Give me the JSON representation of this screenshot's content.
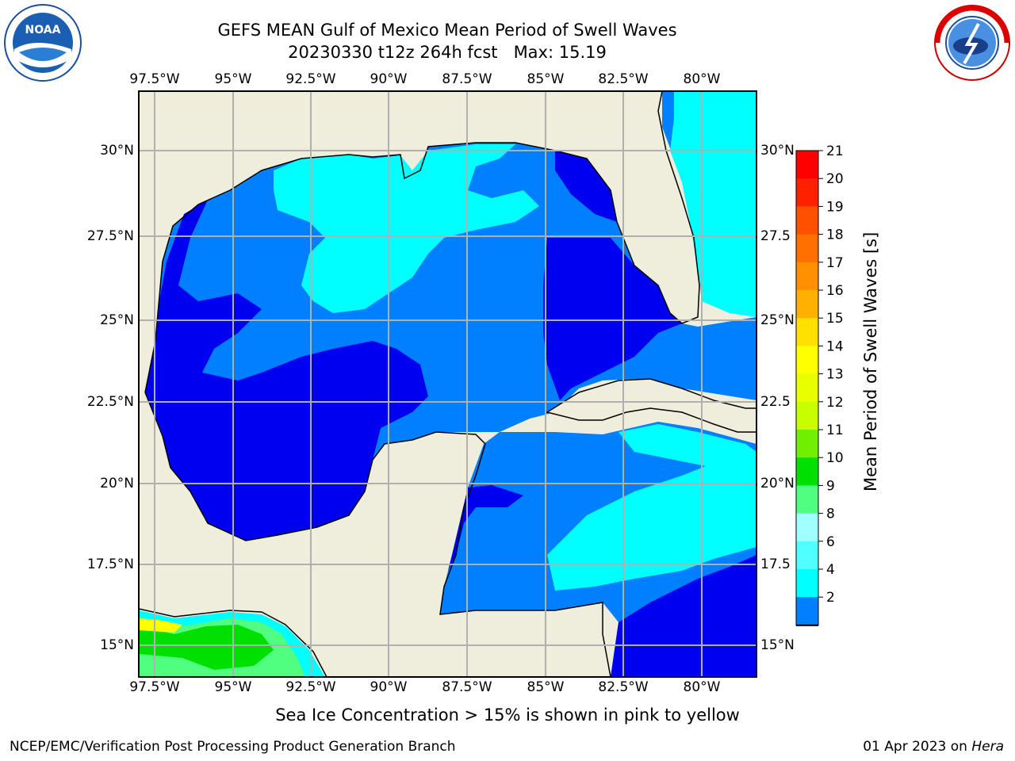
{
  "header": {
    "title_line1": "GEFS MEAN Gulf of Mexico Mean Period of Swell Waves",
    "title_line2": "20230330 t12z 264h fcst   Max: 15.19"
  },
  "logos": {
    "left": {
      "text": "NOAA",
      "ring_text": "NATIONAL OCEANIC AND ATMOSPHERIC ADMINISTRATION · U.S. DEPARTMENT OF COMMERCE"
    },
    "right": {
      "ring_text": "NATIONAL WEATHER SERVICE"
    }
  },
  "map": {
    "lon_ticks": [
      "97.5°W",
      "95°W",
      "92.5°W",
      "90°W",
      "87.5°W",
      "85°W",
      "82.5°W",
      "80°W"
    ],
    "lat_ticks_left": [
      "30°N",
      "27.5°N",
      "25°N",
      "22.5°N",
      "20°N",
      "17.5°N",
      "15°N"
    ],
    "lat_ticks_right": [
      "30°N",
      "27.5",
      "25°N",
      "22.5",
      "20°N",
      "17.5",
      "15°N"
    ],
    "extent": {
      "lon": [
        -98,
        -78.3
      ],
      "lat": [
        14,
        31.8
      ]
    },
    "colors": {
      "land": "#efeddc",
      "ocean_2_4": "#0080ff",
      "ocean_lt2": "#0000f0",
      "ocean_4_6": "#00ffff",
      "grid": "#b0b0b0"
    }
  },
  "colorbar": {
    "label": "Mean Period of Swell Waves [s]",
    "ticks": [
      "21",
      "20",
      "19",
      "18",
      "17",
      "16",
      "15",
      "14",
      "13",
      "12",
      "11",
      "10",
      "9",
      "8",
      "6",
      "4",
      "2"
    ],
    "colors": [
      "#ff0000",
      "#ff2000",
      "#ff5000",
      "#ff7000",
      "#ff9000",
      "#ffb000",
      "#ffe000",
      "#ffff00",
      "#e8ff00",
      "#c8ff00",
      "#70f000",
      "#00e000",
      "#50ff80",
      "#a0ffff",
      "#50ffff",
      "#00ffff",
      "#0080ff"
    ],
    "extend_color": "#0000f0"
  },
  "subnote": "Sea Ice Concentration > 15% is shown in pink to yellow",
  "footer": {
    "left": "NCEP/EMC/Verification Post Processing Product Generation Branch",
    "right_date": "01 Apr 2023 on ",
    "right_host": "Hera"
  }
}
